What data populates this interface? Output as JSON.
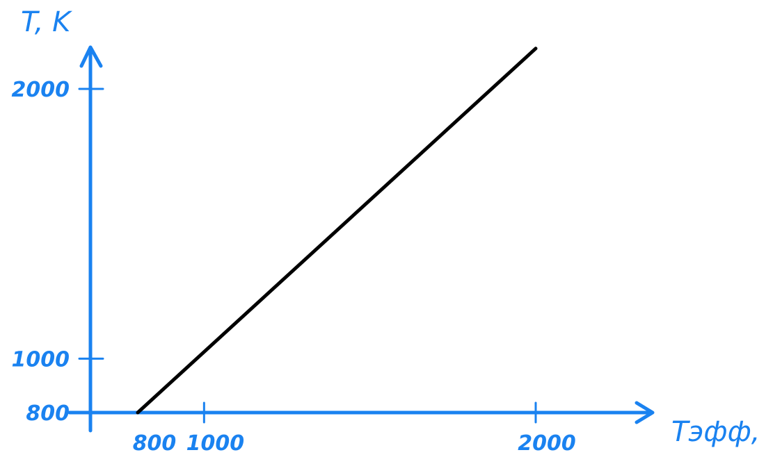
{
  "chart_data": {
    "type": "line",
    "title": "",
    "xlabel": "Tэфф, K",
    "ylabel": "T, K",
    "x_ticks": [
      800,
      1000,
      2000
    ],
    "y_ticks": [
      800,
      1000,
      2000
    ],
    "x_tick_labels": [
      "800",
      "1000",
      "2000"
    ],
    "y_tick_labels": [
      "800",
      "1000",
      "2000"
    ],
    "xlim": [
      800,
      2000
    ],
    "ylim": [
      800,
      2000
    ],
    "series": [
      {
        "x": [
          800,
          2000
        ],
        "y": [
          800,
          2150
        ]
      }
    ],
    "grid": false,
    "legend": "none",
    "colors": {
      "axis": "#1a82f0",
      "line": "#000000"
    }
  }
}
